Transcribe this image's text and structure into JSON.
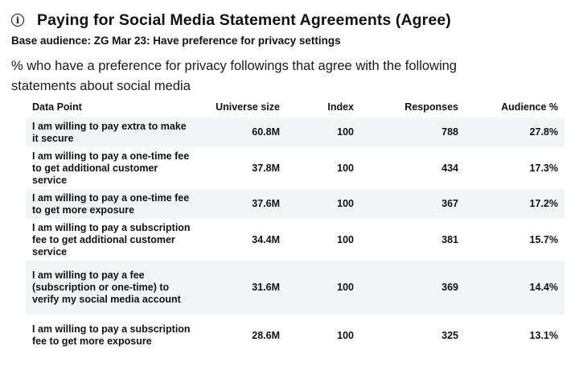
{
  "header": {
    "info_icon": "info-icon",
    "title": "Paying for Social Media Statement Agreements (Agree)",
    "base_audience": "Base audience: ZG Mar 23: Have preference for privacy settings",
    "description": "% who have a preference for privacy followings that agree with the following statements about social media"
  },
  "table": {
    "columns": [
      "Data Point",
      "Universe size",
      "Index",
      "Responses",
      "Audience %"
    ],
    "rows": [
      {
        "data_point": "I am willing to pay extra to make it secure",
        "universe_size": "60.8M",
        "index": "100",
        "responses": "788",
        "audience_pct": "27.8%"
      },
      {
        "data_point": "I am willing to pay a one-time fee to get additional customer service",
        "universe_size": "37.8M",
        "index": "100",
        "responses": "434",
        "audience_pct": "17.3%"
      },
      {
        "data_point": "I am willing to pay a one-time fee to get more exposure",
        "universe_size": "37.6M",
        "index": "100",
        "responses": "367",
        "audience_pct": "17.2%"
      },
      {
        "data_point": "I am willing to pay a subscription fee to get additional customer service",
        "universe_size": "34.4M",
        "index": "100",
        "responses": "381",
        "audience_pct": "15.7%"
      },
      {
        "data_point": "I am willing to pay a fee (subscription or one-time) to verify my social media account",
        "universe_size": "31.6M",
        "index": "100",
        "responses": "369",
        "audience_pct": "14.4%"
      },
      {
        "data_point": "I am willing to pay a subscription fee to get more exposure",
        "universe_size": "28.6M",
        "index": "100",
        "responses": "325",
        "audience_pct": "13.1%"
      }
    ]
  }
}
